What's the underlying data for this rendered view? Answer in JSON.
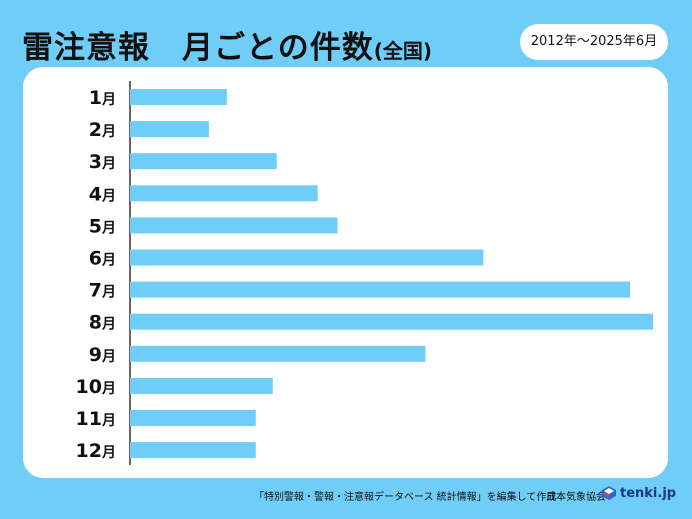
{
  "header": {
    "title_main": "雷注意報　月ごとの件数",
    "title_sub": "(全国)",
    "period": "2012年～2025年6月"
  },
  "footer": {
    "source": "「特別警報・警報・注意報データベース 統計情報」を編集して作成",
    "association": "日本気象協会",
    "logo_text": "tenki.jp"
  },
  "colors": {
    "background": "#6fcdf8",
    "bar": "#6fcdf8",
    "panel": "#ffffff"
  },
  "icons": {
    "logo": "tenki-logo-icon"
  },
  "chart_data": {
    "type": "bar",
    "orientation": "horizontal",
    "categories": [
      "1月",
      "2月",
      "3月",
      "4月",
      "5月",
      "6月",
      "7月",
      "8月",
      "9月",
      "10月",
      "11月",
      "12月"
    ],
    "values": [
      97,
      79,
      147,
      188,
      208,
      354,
      501,
      524,
      296,
      143,
      126,
      126
    ],
    "xlim": [
      0,
      524
    ],
    "grid": false,
    "legend": "none",
    "xlabel": "",
    "ylabel": ""
  }
}
